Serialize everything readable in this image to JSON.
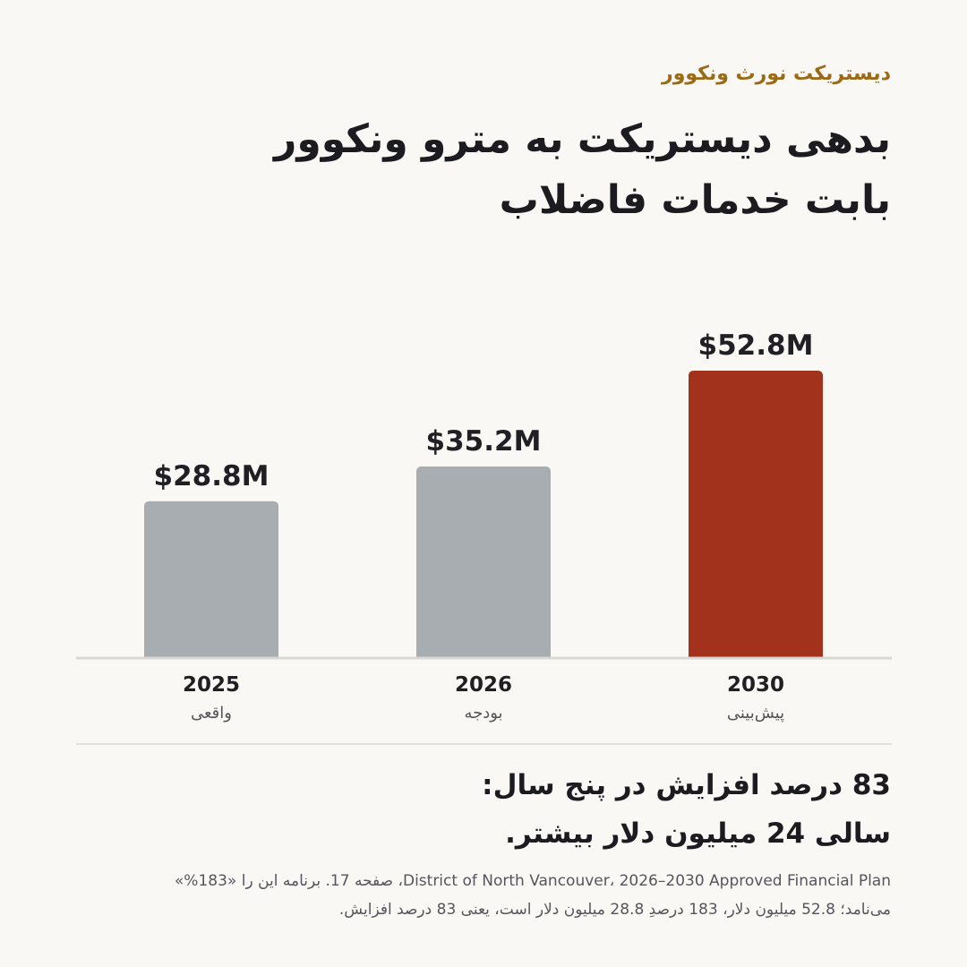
{
  "header": {
    "eyebrow": "دیستریکت نورث ونکوور",
    "title_line1": "بدهی دیستریکت به مترو ونکوور",
    "title_line2": "بابت خدمات فاضلاب"
  },
  "chart_data": {
    "type": "bar",
    "categories": [
      "2025",
      "2026",
      "2030"
    ],
    "category_sublabels": [
      "واقعی",
      "بودجه",
      "پیش‌بینی"
    ],
    "values": [
      28.8,
      35.2,
      52.8
    ],
    "value_labels": [
      "$28.8M",
      "$35.2M",
      "$52.8M"
    ],
    "units": "M$",
    "ylim": [
      0,
      60
    ],
    "grid": false,
    "colors": [
      "#a8adb2",
      "#a8adb2",
      "#a2321c"
    ]
  },
  "takeaway": {
    "line1": "83 درصد افزایش در پنج سال:",
    "line2": "سالی 24 میلیون دلار بیشتر."
  },
  "source": {
    "line1": "District of North Vancouver، 2026–2030 Approved Financial Plan، صفحه 17. برنامه این را «183%»",
    "line2": "می‌نامد؛ 52.8 میلیون دلار، 183 درصدِ 28.8 میلیون دلار است، یعنی 83 درصد افزایش."
  }
}
